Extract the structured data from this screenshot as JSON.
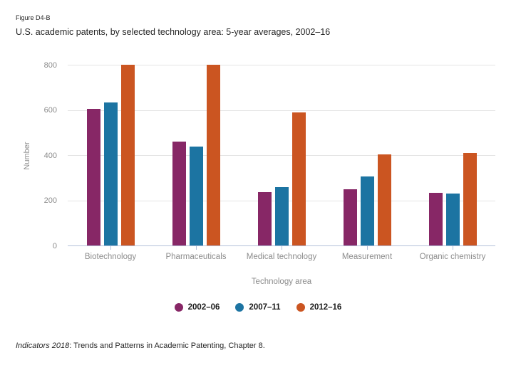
{
  "figure_label": "Figure D4-B",
  "title": "U.S. academic patents, by selected technology area: 5-year averages, 2002–16",
  "source": {
    "italic_part": "Indicators 2018",
    "text_part": ": Trends and Patterns in Academic Patenting, Chapter 8."
  },
  "colors": {
    "series_2002_06": "#872766",
    "series_2007_11": "#1c74a2",
    "series_2012_16": "#cb5521",
    "gridline": "#e4e4e4",
    "axis_line": "#b4c0da",
    "label_gray": "#8c8c8c",
    "text_dark": "#262626"
  },
  "chart_data": {
    "type": "bar",
    "title": "U.S. academic patents, by selected technology area: 5-year averages, 2002–16",
    "categories": [
      "Biotechnology",
      "Pharmaceuticals",
      "Medical technology",
      "Measurement",
      "Organic chemistry"
    ],
    "series": [
      {
        "name": "2002–06",
        "color": "#872766",
        "values": [
          608,
          464,
          238,
          253,
          237
        ]
      },
      {
        "name": "2007–11",
        "color": "#1c74a2",
        "values": [
          636,
          442,
          262,
          308,
          234
        ]
      },
      {
        "name": "2012–16",
        "color": "#cb5521",
        "values": [
          803,
          802,
          591,
          407,
          412
        ]
      }
    ],
    "xlabel": "Technology area",
    "ylabel": "Number",
    "ylim": [
      0,
      800
    ],
    "yticks": [
      0,
      200,
      400,
      600,
      800
    ],
    "grid": true,
    "legend_position": "bottom"
  }
}
